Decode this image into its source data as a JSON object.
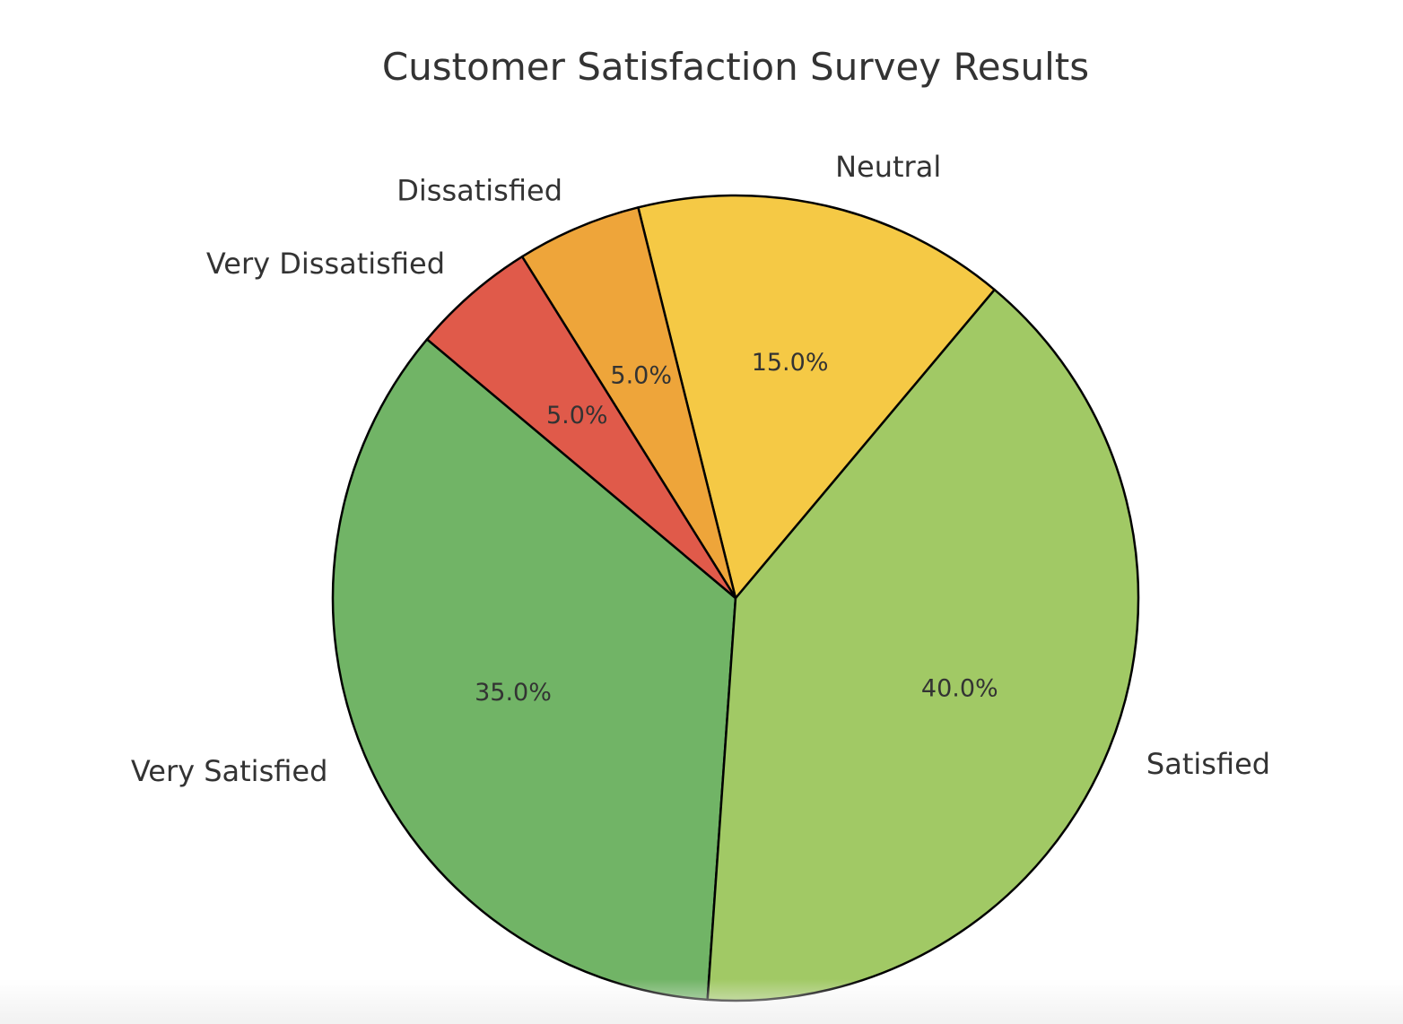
{
  "chart_data": {
    "type": "pie",
    "title": "Customer Satisfaction Survey Results",
    "categories": [
      "Very Satisfied",
      "Satisfied",
      "Neutral",
      "Dissatisfied",
      "Very Dissatisfied"
    ],
    "values": [
      35,
      40,
      15,
      5,
      5
    ],
    "value_labels": [
      "35.0%",
      "40.0%",
      "15.0%",
      "5.0%",
      "5.0%"
    ],
    "colors": [
      "#71b466",
      "#a1c965",
      "#f5c945",
      "#eea53a",
      "#e05a4a"
    ],
    "start_angle": 140,
    "direction": "counterclockwise"
  }
}
